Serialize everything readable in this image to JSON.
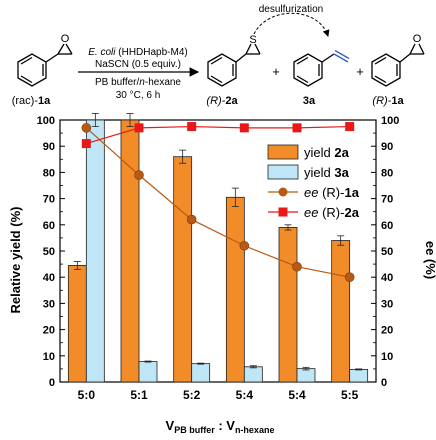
{
  "scheme": {
    "reactant_label_prefix": "(rac)-",
    "reactant_label_bold": "1a",
    "conditions": [
      {
        "italic": "E. coli",
        "rest": " (HHDHapb-M4)"
      },
      {
        "italic": "",
        "rest": "NaSCN (0.5 equiv.)"
      },
      {
        "italic": "",
        "rest": "PB buffer/"
      },
      {
        "italic": "",
        "rest": "30 °C, 6 h"
      }
    ],
    "condition_solvent_italic": "n",
    "condition_solvent_rest": "-hexane",
    "product1_prefix": "(R)-",
    "product1_bold": "2a",
    "product2_bold": "3a",
    "product3_prefix": "(R)-",
    "product3_bold": "1a",
    "plus": "+",
    "desulfurization_label": "desulfurization",
    "atom_O": "O",
    "atom_S": "S"
  },
  "chart_data": {
    "type": "bar",
    "categories": [
      "5:0",
      "5:1",
      "5:2",
      "5:4",
      "5:4",
      "5:5"
    ],
    "series": [
      {
        "name": "yield 2a",
        "axis": "left",
        "kind": "bar",
        "color": "#F28C28",
        "values": [
          44.5,
          100,
          86,
          70.5,
          59,
          54
        ],
        "errors": [
          1.5,
          2.5,
          2.5,
          3.5,
          1,
          1.8
        ]
      },
      {
        "name": "yield 3a",
        "axis": "left",
        "kind": "bar",
        "color": "#BEE6F7",
        "values": [
          100,
          7.8,
          7,
          5.8,
          5.1,
          4.8
        ],
        "errors": [
          2.5,
          0.2,
          0.2,
          0.4,
          0.5,
          0.2
        ]
      },
      {
        "name": "ee (R)-1a",
        "axis": "right",
        "kind": "line",
        "color": "#B85A14",
        "values": [
          97,
          79,
          62,
          52,
          44,
          40
        ]
      },
      {
        "name": "ee (R)-2a",
        "axis": "right",
        "kind": "line",
        "color": "#E81818",
        "values": [
          91,
          97,
          97.5,
          97,
          97,
          97.5
        ]
      }
    ],
    "ylabel": "Relative yield (%)",
    "y2label": "ee (%)",
    "xlabel_main": "V",
    "xlabel_sub1": "PB buffer",
    "xlabel_colon": " : V",
    "xlabel_sub2": "n-hexane",
    "ylim": [
      0,
      100
    ],
    "y2lim": [
      0,
      100
    ],
    "yticks": [
      "0",
      "10",
      "20",
      "30",
      "40",
      "50",
      "60",
      "70",
      "80",
      "90",
      "100"
    ],
    "y2ticks": [
      "0",
      "10",
      "20",
      "30",
      "40",
      "50",
      "60",
      "70",
      "80",
      "90",
      "100"
    ],
    "legend": [
      {
        "normal": "yield ",
        "italic": "",
        "bold": "2a"
      },
      {
        "normal": "yield ",
        "italic": "",
        "bold": "3a"
      },
      {
        "normal": " (R)-",
        "italic": "ee",
        "bold": "1a"
      },
      {
        "normal": " (R)-",
        "italic": "ee",
        "bold": "2a"
      }
    ],
    "legend_position": "top-right",
    "grid": false
  }
}
